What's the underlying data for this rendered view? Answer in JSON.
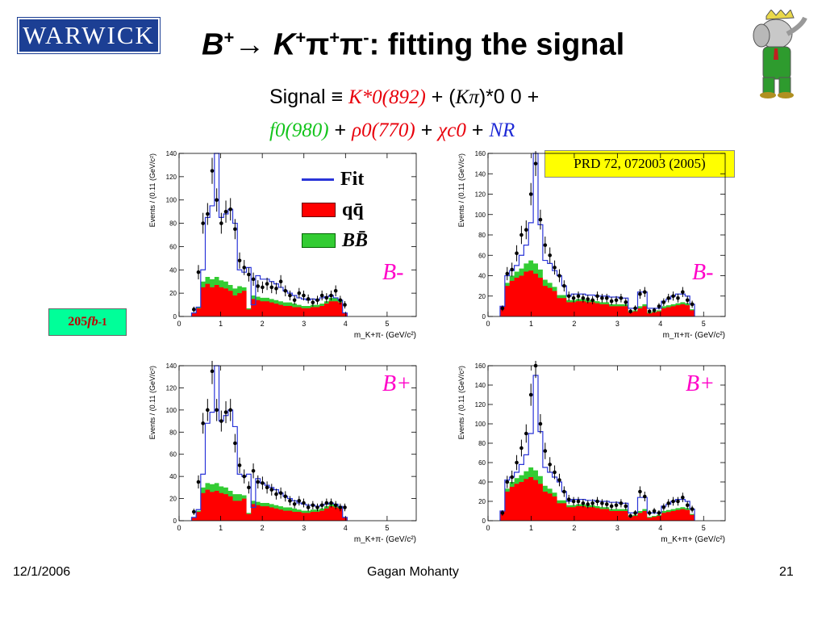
{
  "logo": {
    "text": "WARWICK"
  },
  "title": {
    "p1": "B",
    "p1sup": "+",
    "arrow": "→ ",
    "p2": "K",
    "p2sup": "+",
    "p3": "π",
    "p3sup": "+",
    "p4": "π",
    "p4sup": "-",
    "rest": ": fitting the signal"
  },
  "equation": {
    "line1": {
      "signal": "Signal",
      "equiv": " ≡ ",
      "k892": "K*0(892)",
      "plus1": " + (",
      "kpi": "Kπ",
      "kpiexp": ")*0 0",
      "plus2": " +"
    },
    "line2": {
      "f0": "f0(980)",
      "plus3": " + ",
      "rho": "ρ0(770)",
      "plus4": " + ",
      "chi": "χc0",
      "plus5": " + ",
      "nr": "NR"
    }
  },
  "reference": "PRD 72, 072003 (2005)",
  "luminosity": {
    "value": "205 ",
    "unit": "fb",
    "exp": "-1"
  },
  "legend": {
    "fit": "Fit",
    "qq": "qq̄",
    "bb": "BB̄"
  },
  "colors": {
    "fit": "#2a35d8",
    "qq": "#ff0000",
    "bb": "#33cc33",
    "points": "#000000",
    "logo_bg": "#1c3f94",
    "ref_bg": "#ffff00",
    "lumi_bg": "#00ff99",
    "charge_label": "#ff00c8"
  },
  "chart_data": [
    {
      "type": "histogram",
      "panel": "top-left",
      "charge_label": "B-",
      "ylabel": "Events / (0.11 (GeV/c²)",
      "xlabel": "m_K+π- (GeV/c²)",
      "xlim": [
        0,
        5.7
      ],
      "ylim": [
        0,
        140
      ],
      "yticks": [
        0,
        20,
        40,
        60,
        80,
        100,
        120,
        140
      ],
      "xticks": [
        0,
        1,
        2,
        3,
        4,
        5
      ],
      "bins_x0": 0.3,
      "bin_width": 0.11,
      "fit": [
        3,
        8,
        40,
        85,
        95,
        140,
        85,
        88,
        92,
        80,
        40,
        38,
        42,
        10,
        35,
        32,
        32,
        30,
        28,
        25,
        22,
        20,
        18,
        16,
        15,
        14,
        15,
        14,
        16,
        17,
        18,
        16,
        14,
        3
      ],
      "qq": [
        3,
        7,
        25,
        28,
        25,
        27,
        25,
        24,
        22,
        18,
        20,
        22,
        6,
        15,
        14,
        13,
        13,
        12,
        11,
        10,
        9,
        9,
        8,
        8,
        7,
        7,
        8,
        8,
        9,
        11,
        13,
        13,
        12,
        3
      ],
      "bb": [
        0,
        1,
        5,
        6,
        7,
        7,
        6,
        6,
        5,
        6,
        6,
        3,
        1,
        3,
        3,
        3,
        3,
        3,
        3,
        3,
        3,
        3,
        3,
        2,
        2,
        2,
        2,
        2,
        2,
        2,
        3,
        3,
        2,
        0
      ],
      "points": [
        6,
        38,
        80,
        88,
        125,
        100,
        80,
        90,
        92,
        75,
        48,
        42,
        36,
        32,
        26,
        25,
        28,
        25,
        24,
        30,
        22,
        18,
        14,
        20,
        18,
        15,
        12,
        14,
        18,
        16,
        18,
        22,
        14,
        10
      ]
    },
    {
      "type": "histogram",
      "panel": "top-right",
      "charge_label": "B-",
      "ylabel": "Events / (0.11 (GeV/c²)",
      "xlabel": "m_π+π- (GeV/c²)",
      "xlim": [
        0,
        5.5
      ],
      "ylim": [
        0,
        160
      ],
      "yticks": [
        0,
        20,
        40,
        60,
        80,
        100,
        120,
        140,
        160
      ],
      "xticks": [
        0,
        1,
        2,
        3,
        4,
        5
      ],
      "bins_x0": 0.28,
      "bin_width": 0.11,
      "fit": [
        10,
        40,
        45,
        50,
        60,
        70,
        92,
        160,
        90,
        55,
        52,
        45,
        40,
        30,
        20,
        22,
        22,
        22,
        21,
        21,
        20,
        20,
        20,
        19,
        19,
        18,
        18,
        8,
        8,
        24,
        24,
        8,
        8,
        8,
        15,
        17,
        20,
        22,
        22,
        20,
        12
      ],
      "qq": [
        10,
        30,
        35,
        38,
        40,
        44,
        45,
        42,
        38,
        30,
        28,
        25,
        18,
        18,
        14,
        14,
        15,
        15,
        14,
        14,
        13,
        12,
        12,
        10,
        10,
        10,
        10,
        4,
        5,
        8,
        10,
        3,
        4,
        5,
        8,
        9,
        10,
        11,
        12,
        11,
        6
      ],
      "bb": [
        0,
        3,
        5,
        6,
        7,
        8,
        10,
        10,
        8,
        6,
        5,
        4,
        3,
        3,
        2,
        2,
        2,
        2,
        2,
        2,
        2,
        2,
        2,
        2,
        2,
        2,
        2,
        1,
        1,
        2,
        2,
        1,
        1,
        1,
        2,
        2,
        2,
        2,
        2,
        2,
        1
      ],
      "points": [
        8,
        42,
        46,
        62,
        80,
        85,
        120,
        150,
        95,
        70,
        60,
        48,
        40,
        30,
        20,
        18,
        20,
        18,
        17,
        16,
        20,
        18,
        18,
        15,
        16,
        18,
        14,
        5,
        8,
        22,
        24,
        5,
        6,
        10,
        14,
        18,
        20,
        18,
        24,
        16,
        12
      ]
    },
    {
      "type": "histogram",
      "panel": "bottom-left",
      "charge_label": "B+",
      "ylabel": "Events / (0.11 (GeV/c²)",
      "xlabel": "m_K+π- (GeV/c²)",
      "xlim": [
        0,
        5.7
      ],
      "ylim": [
        0,
        140
      ],
      "yticks": [
        0,
        20,
        40,
        60,
        80,
        100,
        120,
        140
      ],
      "xticks": [
        0,
        1,
        2,
        3,
        4,
        5
      ],
      "bins_x0": 0.3,
      "bin_width": 0.11,
      "fit": [
        3,
        10,
        42,
        88,
        98,
        140,
        90,
        95,
        100,
        85,
        42,
        40,
        42,
        12,
        38,
        34,
        32,
        30,
        28,
        25,
        22,
        20,
        18,
        16,
        15,
        14,
        14,
        13,
        14,
        15,
        16,
        15,
        13,
        3
      ],
      "qq": [
        3,
        8,
        25,
        28,
        26,
        27,
        25,
        24,
        22,
        18,
        18,
        20,
        6,
        15,
        14,
        13,
        13,
        12,
        11,
        10,
        9,
        9,
        8,
        8,
        7,
        7,
        8,
        8,
        9,
        11,
        13,
        12,
        11,
        3
      ],
      "bb": [
        0,
        1,
        5,
        6,
        7,
        7,
        6,
        6,
        5,
        6,
        6,
        3,
        1,
        3,
        3,
        3,
        3,
        3,
        3,
        3,
        3,
        3,
        3,
        2,
        2,
        2,
        2,
        2,
        2,
        2,
        3,
        3,
        2,
        0
      ],
      "points": [
        8,
        35,
        88,
        100,
        135,
        100,
        90,
        98,
        100,
        70,
        50,
        40,
        30,
        45,
        35,
        34,
        30,
        28,
        24,
        25,
        22,
        18,
        15,
        18,
        16,
        12,
        14,
        12,
        14,
        16,
        16,
        14,
        12,
        12
      ]
    },
    {
      "type": "histogram",
      "panel": "bottom-right",
      "charge_label": "B+",
      "ylabel": "Events / (0.11 (GeV/c²)",
      "xlabel": "m_K+π+ (GeV/c²)",
      "xlim": [
        0,
        5.5
      ],
      "ylim": [
        0,
        160
      ],
      "yticks": [
        0,
        20,
        40,
        60,
        80,
        100,
        120,
        140,
        160
      ],
      "xticks": [
        0,
        1,
        2,
        3,
        4,
        5
      ],
      "bins_x0": 0.28,
      "bin_width": 0.11,
      "fit": [
        10,
        42,
        45,
        50,
        58,
        68,
        90,
        150,
        92,
        55,
        50,
        45,
        40,
        30,
        20,
        22,
        22,
        22,
        21,
        21,
        20,
        20,
        20,
        19,
        19,
        18,
        18,
        8,
        8,
        24,
        24,
        8,
        8,
        8,
        15,
        17,
        20,
        22,
        22,
        20,
        12
      ],
      "qq": [
        10,
        30,
        35,
        38,
        40,
        43,
        45,
        42,
        38,
        30,
        28,
        25,
        18,
        18,
        14,
        14,
        15,
        15,
        14,
        14,
        13,
        12,
        12,
        10,
        10,
        10,
        10,
        4,
        5,
        8,
        10,
        3,
        4,
        5,
        8,
        9,
        10,
        11,
        12,
        11,
        6
      ],
      "bb": [
        0,
        3,
        5,
        6,
        7,
        8,
        10,
        10,
        8,
        6,
        5,
        4,
        3,
        3,
        2,
        2,
        2,
        2,
        2,
        2,
        2,
        2,
        2,
        2,
        2,
        2,
        2,
        1,
        1,
        2,
        2,
        1,
        1,
        1,
        2,
        2,
        2,
        2,
        2,
        2,
        1
      ],
      "points": [
        8,
        40,
        45,
        60,
        75,
        90,
        130,
        160,
        100,
        72,
        58,
        50,
        42,
        30,
        22,
        20,
        20,
        18,
        17,
        18,
        20,
        18,
        17,
        15,
        16,
        18,
        15,
        5,
        8,
        30,
        25,
        8,
        10,
        8,
        14,
        18,
        20,
        20,
        24,
        16,
        12
      ]
    }
  ],
  "footer": {
    "date": "12/1/2006",
    "author": "Gagan Mohanty",
    "page": "21"
  }
}
